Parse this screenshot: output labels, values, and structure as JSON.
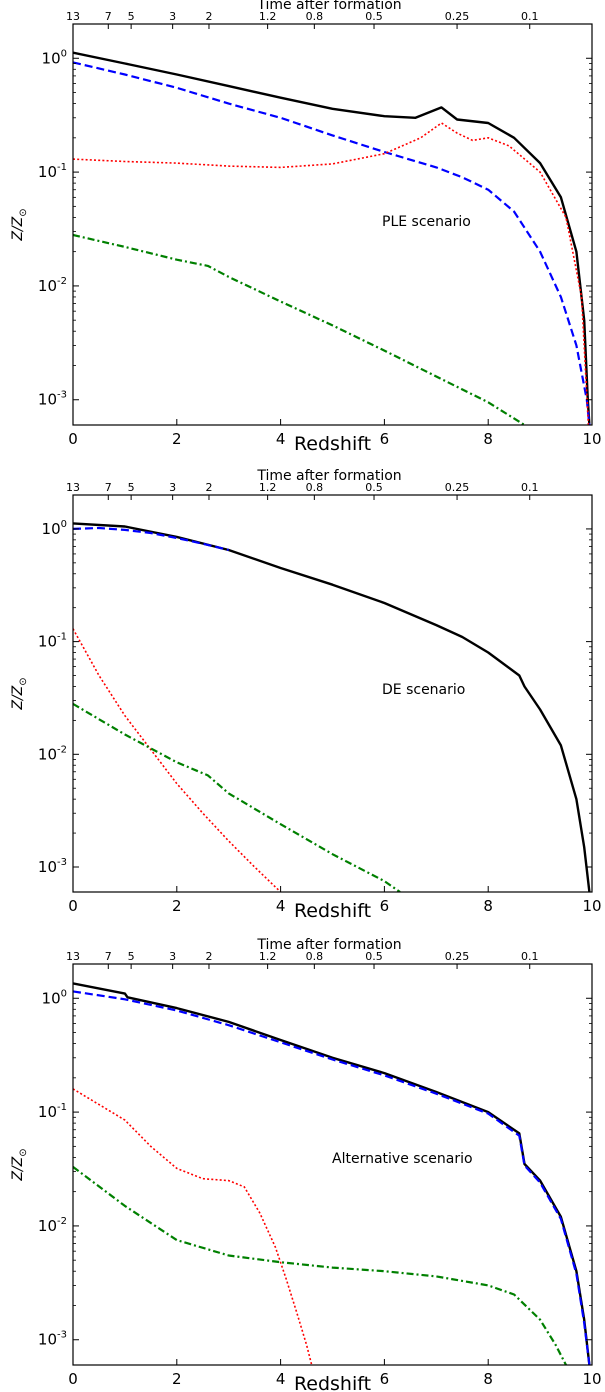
{
  "chart_data": [
    {
      "type": "line",
      "annotation": "PLE scenario",
      "xlabel": "Redshift",
      "ylabel": "Z/Z",
      "ylabel_subscript": "⊙",
      "top_axis_title": "Time after formation",
      "top_ticks": [
        {
          "label": "13",
          "z": 0.0
        },
        {
          "label": "7",
          "z": 0.68
        },
        {
          "label": "5",
          "z": 1.12
        },
        {
          "label": "3",
          "z": 1.92
        },
        {
          "label": "2",
          "z": 2.62
        },
        {
          "label": "1.2",
          "z": 3.75
        },
        {
          "label": "0.8",
          "z": 4.65
        },
        {
          "label": "0.5",
          "z": 5.8
        },
        {
          "label": "0.25",
          "z": 7.4
        },
        {
          "label": "0.1",
          "z": 8.8
        }
      ],
      "xlim": [
        0,
        10
      ],
      "ylim": [
        0.0006,
        2.0
      ],
      "yscale": "log",
      "xticks": [
        0,
        2,
        4,
        6,
        8,
        10
      ],
      "yticks": [
        {
          "value": 0.001,
          "base": "10",
          "exp": "-3"
        },
        {
          "value": 0.01,
          "base": "10",
          "exp": "-2"
        },
        {
          "value": 0.1,
          "base": "10",
          "exp": "-1"
        },
        {
          "value": 1,
          "base": "10",
          "exp": "0"
        }
      ],
      "series": [
        {
          "style": "solid",
          "color": "#000000",
          "x": [
            0,
            1,
            2,
            3,
            4,
            5,
            6,
            6.6,
            7.1,
            7.4,
            8.0,
            8.5,
            9.0,
            9.4,
            9.7,
            9.85,
            9.92,
            9.95
          ],
          "y": [
            1.12,
            0.9,
            0.72,
            0.57,
            0.45,
            0.36,
            0.31,
            0.3,
            0.37,
            0.29,
            0.27,
            0.2,
            0.12,
            0.06,
            0.02,
            0.005,
            0.001,
            0.0006
          ]
        },
        {
          "style": "dashed",
          "color": "#0000ff",
          "x": [
            0,
            1,
            2,
            3,
            4,
            5,
            6,
            7,
            7.5,
            8.0,
            8.5,
            9.0,
            9.4,
            9.7,
            9.9,
            9.95
          ],
          "y": [
            0.92,
            0.72,
            0.55,
            0.4,
            0.3,
            0.21,
            0.15,
            0.11,
            0.09,
            0.07,
            0.045,
            0.02,
            0.008,
            0.003,
            0.001,
            0.0006
          ]
        },
        {
          "style": "dotted",
          "color": "#ff0000",
          "x": [
            0,
            1,
            2,
            3,
            4,
            5,
            6,
            6.7,
            7.1,
            7.4,
            7.7,
            8.0,
            8.4,
            9.0,
            9.5,
            9.8,
            9.93
          ],
          "y": [
            0.13,
            0.124,
            0.12,
            0.113,
            0.11,
            0.118,
            0.145,
            0.2,
            0.27,
            0.22,
            0.19,
            0.2,
            0.17,
            0.1,
            0.04,
            0.008,
            0.0006
          ]
        },
        {
          "style": "dashdot",
          "color": "#008000",
          "x": [
            0,
            1,
            2,
            2.6,
            3,
            4,
            5,
            6,
            7,
            8,
            8.7
          ],
          "y": [
            0.028,
            0.022,
            0.017,
            0.015,
            0.012,
            0.0073,
            0.0045,
            0.0027,
            0.0016,
            0.00095,
            0.0006
          ]
        }
      ]
    },
    {
      "type": "line",
      "annotation": "DE scenario",
      "xlabel": "Redshift",
      "ylabel": "Z/Z",
      "ylabel_subscript": "⊙",
      "top_axis_title": "Time after formation",
      "top_ticks": [
        {
          "label": "13",
          "z": 0.0
        },
        {
          "label": "7",
          "z": 0.68
        },
        {
          "label": "5",
          "z": 1.12
        },
        {
          "label": "3",
          "z": 1.92
        },
        {
          "label": "2",
          "z": 2.62
        },
        {
          "label": "1.2",
          "z": 3.75
        },
        {
          "label": "0.8",
          "z": 4.65
        },
        {
          "label": "0.5",
          "z": 5.8
        },
        {
          "label": "0.25",
          "z": 7.4
        },
        {
          "label": "0.1",
          "z": 8.8
        }
      ],
      "xlim": [
        0,
        10
      ],
      "ylim": [
        0.0006,
        2.0
      ],
      "yscale": "log",
      "xticks": [
        0,
        2,
        4,
        6,
        8,
        10
      ],
      "yticks": [
        {
          "value": 0.001,
          "base": "10",
          "exp": "-3"
        },
        {
          "value": 0.01,
          "base": "10",
          "exp": "-2"
        },
        {
          "value": 0.1,
          "base": "10",
          "exp": "-1"
        },
        {
          "value": 1,
          "base": "10",
          "exp": "0"
        }
      ],
      "series": [
        {
          "style": "solid",
          "color": "#000000",
          "x": [
            0,
            1,
            2,
            3,
            4,
            5,
            6,
            7,
            7.5,
            8,
            8.6,
            8.7,
            9.0,
            9.4,
            9.7,
            9.85,
            9.95
          ],
          "y": [
            1.12,
            1.05,
            0.85,
            0.65,
            0.45,
            0.32,
            0.22,
            0.14,
            0.11,
            0.08,
            0.05,
            0.04,
            0.025,
            0.012,
            0.004,
            0.0015,
            0.0006
          ]
        },
        {
          "style": "dashed",
          "color": "#0000ff",
          "x": [
            0,
            0.5,
            1,
            1.5,
            2,
            2.5,
            3
          ],
          "y": [
            1.0,
            1.02,
            0.98,
            0.92,
            0.83,
            0.74,
            0.65
          ]
        },
        {
          "style": "dotted",
          "color": "#ff0000",
          "x": [
            0,
            0.5,
            1,
            1.5,
            2,
            2.5,
            3,
            3.5,
            4
          ],
          "y": [
            0.13,
            0.05,
            0.022,
            0.011,
            0.0055,
            0.003,
            0.0017,
            0.001,
            0.0006
          ]
        },
        {
          "style": "dashdot",
          "color": "#008000",
          "x": [
            0,
            1,
            2,
            2.6,
            3,
            4,
            5,
            6,
            6.3
          ],
          "y": [
            0.028,
            0.015,
            0.0085,
            0.0065,
            0.0045,
            0.0024,
            0.0013,
            0.00075,
            0.0006
          ]
        }
      ]
    },
    {
      "type": "line",
      "annotation": "Alternative scenario",
      "xlabel": "Redshift",
      "ylabel": "Z/Z",
      "ylabel_subscript": "⊙",
      "top_axis_title": "Time after formation",
      "top_ticks": [
        {
          "label": "13",
          "z": 0.0
        },
        {
          "label": "7",
          "z": 0.68
        },
        {
          "label": "5",
          "z": 1.12
        },
        {
          "label": "3",
          "z": 1.92
        },
        {
          "label": "2",
          "z": 2.62
        },
        {
          "label": "1.2",
          "z": 3.75
        },
        {
          "label": "0.8",
          "z": 4.65
        },
        {
          "label": "0.5",
          "z": 5.8
        },
        {
          "label": "0.25",
          "z": 7.4
        },
        {
          "label": "0.1",
          "z": 8.8
        }
      ],
      "xlim": [
        0,
        10
      ],
      "ylim": [
        0.0006,
        2.0
      ],
      "yscale": "log",
      "xticks": [
        0,
        2,
        4,
        6,
        8,
        10
      ],
      "yticks": [
        {
          "value": 0.001,
          "base": "10",
          "exp": "-3"
        },
        {
          "value": 0.01,
          "base": "10",
          "exp": "-2"
        },
        {
          "value": 0.1,
          "base": "10",
          "exp": "-1"
        },
        {
          "value": 1,
          "base": "10",
          "exp": "0"
        }
      ],
      "series": [
        {
          "style": "solid",
          "color": "#000000",
          "x": [
            0,
            1,
            1.05,
            2,
            3,
            4,
            5,
            6,
            7,
            8,
            8.6,
            8.7,
            9.0,
            9.4,
            9.7,
            9.85,
            9.95
          ],
          "y": [
            1.35,
            1.1,
            1.02,
            0.82,
            0.62,
            0.43,
            0.3,
            0.22,
            0.15,
            0.1,
            0.065,
            0.035,
            0.025,
            0.012,
            0.004,
            0.0015,
            0.0006
          ]
        },
        {
          "style": "dashed",
          "color": "#0000ff",
          "x": [
            0,
            1,
            2,
            3,
            4,
            5,
            6,
            7,
            8,
            8.6,
            8.7,
            9.0,
            9.4,
            9.7,
            9.85,
            9.95
          ],
          "y": [
            1.15,
            0.98,
            0.78,
            0.58,
            0.41,
            0.29,
            0.21,
            0.145,
            0.097,
            0.062,
            0.034,
            0.024,
            0.0115,
            0.0038,
            0.0014,
            0.0006
          ]
        },
        {
          "style": "dotted",
          "color": "#ff0000",
          "x": [
            0,
            1,
            1.5,
            2,
            2.5,
            3,
            3.3,
            3.6,
            3.9,
            4.1,
            4.3,
            4.5,
            4.6
          ],
          "y": [
            0.16,
            0.085,
            0.05,
            0.032,
            0.026,
            0.025,
            0.022,
            0.013,
            0.0065,
            0.0035,
            0.0018,
            0.0009,
            0.0006
          ]
        },
        {
          "style": "dashdot",
          "color": "#008000",
          "x": [
            0,
            1,
            2,
            3,
            4,
            5,
            6,
            7,
            8,
            8.5,
            9.0,
            9.3,
            9.5
          ],
          "y": [
            0.033,
            0.015,
            0.0075,
            0.0055,
            0.0048,
            0.0043,
            0.004,
            0.0036,
            0.003,
            0.0025,
            0.0015,
            0.0009,
            0.0006
          ]
        }
      ]
    }
  ]
}
